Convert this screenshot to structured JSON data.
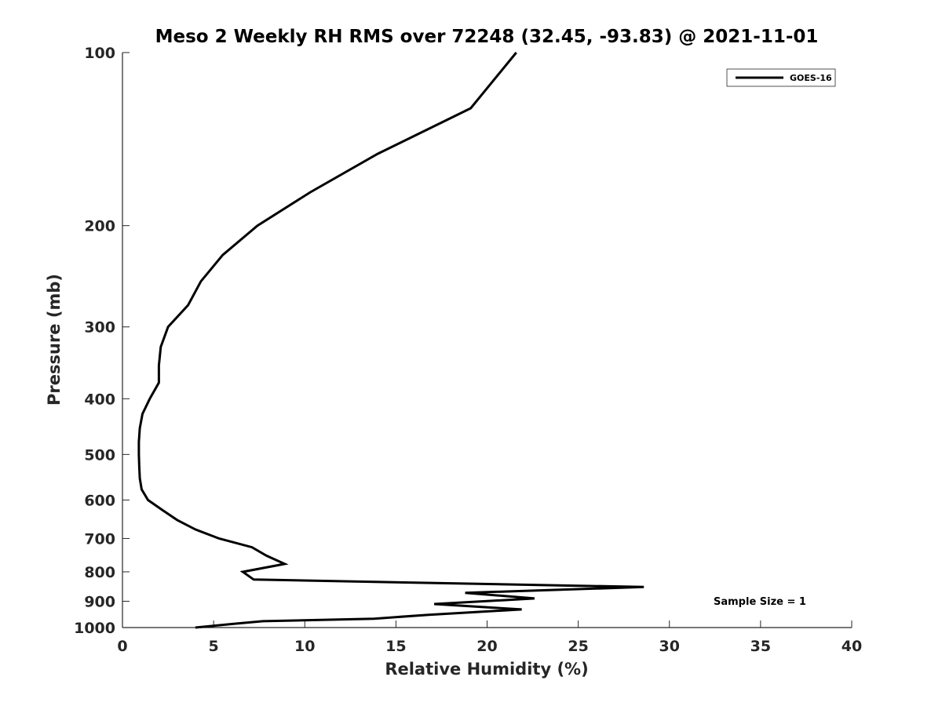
{
  "chart_data": {
    "type": "line",
    "title": "Meso 2 Weekly RH RMS over 72248 (32.45, -93.83) @ 2021-11-01",
    "xlabel": "Relative Humidity (%)",
    "ylabel": "Pressure (mb)",
    "xlim": [
      0,
      40
    ],
    "ylim": [
      1000,
      100
    ],
    "y_scale": "log",
    "y_inverted": true,
    "xticks": [
      "0",
      "5",
      "10",
      "15",
      "20",
      "25",
      "30",
      "35",
      "40"
    ],
    "yticks": [
      "100",
      "200",
      "300",
      "400",
      "500",
      "600",
      "700",
      "800",
      "900",
      "1000"
    ],
    "grid": false,
    "legend_position": "top-right",
    "annotation": "Sample Size = 1",
    "series": [
      {
        "name": "GOES-16",
        "color": "#000000",
        "points": [
          {
            "rh": 21.6,
            "p": 100
          },
          {
            "rh": 19.1,
            "p": 125
          },
          {
            "rh": 14.0,
            "p": 150
          },
          {
            "rh": 10.3,
            "p": 175
          },
          {
            "rh": 7.4,
            "p": 200
          },
          {
            "rh": 5.5,
            "p": 225
          },
          {
            "rh": 4.3,
            "p": 250
          },
          {
            "rh": 3.6,
            "p": 275
          },
          {
            "rh": 2.5,
            "p": 300
          },
          {
            "rh": 2.1,
            "p": 325
          },
          {
            "rh": 2.0,
            "p": 350
          },
          {
            "rh": 2.0,
            "p": 375
          },
          {
            "rh": 1.5,
            "p": 400
          },
          {
            "rh": 1.1,
            "p": 425
          },
          {
            "rh": 0.95,
            "p": 450
          },
          {
            "rh": 0.9,
            "p": 475
          },
          {
            "rh": 0.9,
            "p": 500
          },
          {
            "rh": 0.92,
            "p": 525
          },
          {
            "rh": 0.95,
            "p": 550
          },
          {
            "rh": 1.05,
            "p": 575
          },
          {
            "rh": 1.4,
            "p": 600
          },
          {
            "rh": 2.2,
            "p": 625
          },
          {
            "rh": 3.0,
            "p": 650
          },
          {
            "rh": 4.0,
            "p": 675
          },
          {
            "rh": 5.3,
            "p": 700
          },
          {
            "rh": 7.1,
            "p": 725
          },
          {
            "rh": 7.9,
            "p": 750
          },
          {
            "rh": 8.9,
            "p": 775
          },
          {
            "rh": 6.6,
            "p": 800
          },
          {
            "rh": 7.2,
            "p": 825
          },
          {
            "rh": 28.6,
            "p": 850
          },
          {
            "rh": 18.8,
            "p": 870
          },
          {
            "rh": 22.6,
            "p": 890
          },
          {
            "rh": 17.1,
            "p": 910
          },
          {
            "rh": 21.9,
            "p": 930
          },
          {
            "rh": 16.8,
            "p": 950
          },
          {
            "rh": 13.8,
            "p": 965
          },
          {
            "rh": 7.7,
            "p": 975
          },
          {
            "rh": 6.1,
            "p": 985
          },
          {
            "rh": 4.0,
            "p": 1000
          }
        ]
      }
    ]
  }
}
